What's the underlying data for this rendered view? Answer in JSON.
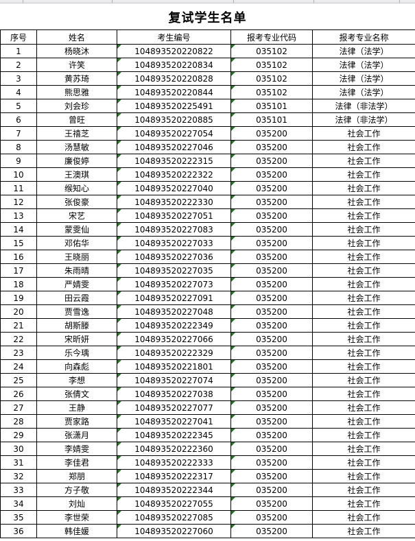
{
  "page": {
    "title": "复试学生名单"
  },
  "colors": {
    "table_border": "#000000",
    "indicator_green": "#1d7d1d",
    "top_strip_fill": "#ebebee",
    "top_strip_lines": "#a9adb5"
  },
  "icons": {
    "cell_corner_flag": "green-corner-triangle"
  },
  "table": {
    "columns": [
      {
        "key": "no",
        "label": "序号"
      },
      {
        "key": "name",
        "label": "姓名"
      },
      {
        "key": "candidate_no",
        "label": "考生编号"
      },
      {
        "key": "major_code",
        "label": "报考专业代码"
      },
      {
        "key": "major_name",
        "label": "报考专业名称"
      }
    ],
    "rows": [
      {
        "no": "1",
        "name": "杨晓沐",
        "candidate_no": "104893520220822",
        "major_code": "035102",
        "major_name": "法律（法学）"
      },
      {
        "no": "2",
        "name": "许笑",
        "candidate_no": "104893520220834",
        "major_code": "035102",
        "major_name": "法律（法学）"
      },
      {
        "no": "3",
        "name": "黄苏琦",
        "candidate_no": "104893520220828",
        "major_code": "035102",
        "major_name": "法律（法学）"
      },
      {
        "no": "4",
        "name": "熊思雅",
        "candidate_no": "104893520220844",
        "major_code": "035102",
        "major_name": "法律（法学）"
      },
      {
        "no": "5",
        "name": "刘会珍",
        "candidate_no": "104893520225491",
        "major_code": "035101",
        "major_name": "法律（非法学）"
      },
      {
        "no": "6",
        "name": "曾旺",
        "candidate_no": "104893520220885",
        "major_code": "035101",
        "major_name": "法律（非法学）"
      },
      {
        "no": "7",
        "name": "王禧芝",
        "candidate_no": "104893520227054",
        "major_code": "035200",
        "major_name": "社会工作"
      },
      {
        "no": "8",
        "name": "汤慧敏",
        "candidate_no": "104893520227046",
        "major_code": "035200",
        "major_name": "社会工作"
      },
      {
        "no": "9",
        "name": "廉俊婷",
        "candidate_no": "104893520222315",
        "major_code": "035200",
        "major_name": "社会工作"
      },
      {
        "no": "10",
        "name": "王澳琪",
        "candidate_no": "104893520222322",
        "major_code": "035200",
        "major_name": "社会工作"
      },
      {
        "no": "11",
        "name": "缑知心",
        "candidate_no": "104893520227040",
        "major_code": "035200",
        "major_name": "社会工作"
      },
      {
        "no": "12",
        "name": "张俊豪",
        "candidate_no": "104893520222330",
        "major_code": "035200",
        "major_name": "社会工作"
      },
      {
        "no": "13",
        "name": "宋艺",
        "candidate_no": "104893520227051",
        "major_code": "035200",
        "major_name": "社会工作"
      },
      {
        "no": "14",
        "name": "蒙雯仙",
        "candidate_no": "104893520227083",
        "major_code": "035200",
        "major_name": "社会工作"
      },
      {
        "no": "15",
        "name": "邓佑华",
        "candidate_no": "104893520227033",
        "major_code": "035200",
        "major_name": "社会工作"
      },
      {
        "no": "16",
        "name": "王晓丽",
        "candidate_no": "104893520227036",
        "major_code": "035200",
        "major_name": "社会工作"
      },
      {
        "no": "17",
        "name": "朱雨晴",
        "candidate_no": "104893520227035",
        "major_code": "035200",
        "major_name": "社会工作"
      },
      {
        "no": "18",
        "name": "严婧雯",
        "candidate_no": "104893520227073",
        "major_code": "035200",
        "major_name": "社会工作"
      },
      {
        "no": "19",
        "name": "田云霞",
        "candidate_no": "104893520227091",
        "major_code": "035200",
        "major_name": "社会工作"
      },
      {
        "no": "20",
        "name": "贾雪逸",
        "candidate_no": "104893520227048",
        "major_code": "035200",
        "major_name": "社会工作"
      },
      {
        "no": "21",
        "name": "胡斯滕",
        "candidate_no": "104893520222349",
        "major_code": "035200",
        "major_name": "社会工作"
      },
      {
        "no": "22",
        "name": "宋昕妍",
        "candidate_no": "104893520227066",
        "major_code": "035200",
        "major_name": "社会工作"
      },
      {
        "no": "23",
        "name": "乐今瑀",
        "candidate_no": "104893520222329",
        "major_code": "035200",
        "major_name": "社会工作"
      },
      {
        "no": "24",
        "name": "向森彪",
        "candidate_no": "104893520221801",
        "major_code": "035200",
        "major_name": "社会工作"
      },
      {
        "no": "25",
        "name": "李想",
        "candidate_no": "104893520227074",
        "major_code": "035200",
        "major_name": "社会工作"
      },
      {
        "no": "26",
        "name": "张倩文",
        "candidate_no": "104893520227038",
        "major_code": "035200",
        "major_name": "社会工作"
      },
      {
        "no": "27",
        "name": "王静",
        "candidate_no": "104893520227077",
        "major_code": "035200",
        "major_name": "社会工作"
      },
      {
        "no": "28",
        "name": "贾家路",
        "candidate_no": "104893520227041",
        "major_code": "035200",
        "major_name": "社会工作"
      },
      {
        "no": "29",
        "name": "张潇月",
        "candidate_no": "104893520222345",
        "major_code": "035200",
        "major_name": "社会工作"
      },
      {
        "no": "30",
        "name": "李婧雯",
        "candidate_no": "104893520222360",
        "major_code": "035200",
        "major_name": "社会工作"
      },
      {
        "no": "31",
        "name": "李佳君",
        "candidate_no": "104893520222333",
        "major_code": "035200",
        "major_name": "社会工作"
      },
      {
        "no": "32",
        "name": "郑朋",
        "candidate_no": "104893520222317",
        "major_code": "035200",
        "major_name": "社会工作"
      },
      {
        "no": "33",
        "name": "方子敬",
        "candidate_no": "104893520222344",
        "major_code": "035200",
        "major_name": "社会工作"
      },
      {
        "no": "34",
        "name": "刘灿",
        "candidate_no": "104893520227055",
        "major_code": "035200",
        "major_name": "社会工作"
      },
      {
        "no": "35",
        "name": "李世荣",
        "candidate_no": "104893520227085",
        "major_code": "035200",
        "major_name": "社会工作"
      },
      {
        "no": "36",
        "name": "韩佳媛",
        "candidate_no": "104893520227060",
        "major_code": "035200",
        "major_name": "社会工作"
      }
    ]
  }
}
